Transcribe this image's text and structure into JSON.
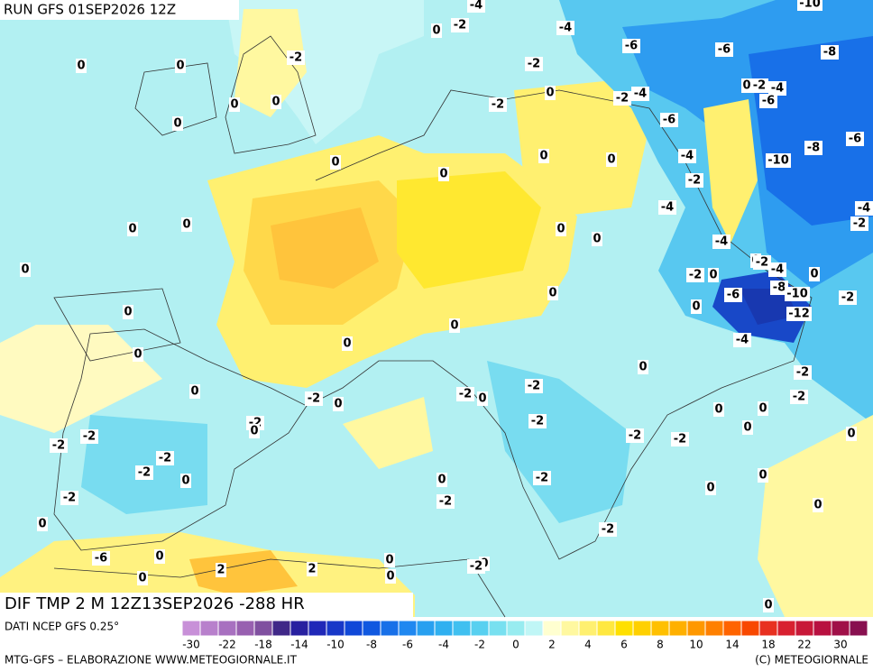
{
  "header": {
    "title": "RUN GFS 01SEP2026 12Z"
  },
  "footer": {
    "field": "DIF TMP 2 M 12Z13SEP2026 -288 HR",
    "source": "DATI NCEP GFS 0.25°",
    "credit_left": "MTG-GFS – ELABORAZIONE WWW.METEOGIORNALE.IT",
    "credit_right": "(C) METEOGIORNALE"
  },
  "colorbar": {
    "colors": [
      "#c890d8",
      "#b880cc",
      "#a870c0",
      "#9860b0",
      "#8050a0",
      "#402888",
      "#2820a0",
      "#2028b8",
      "#1838c8",
      "#1048d8",
      "#1058e0",
      "#1870e8",
      "#2088f0",
      "#28a0f0",
      "#30b0f0",
      "#40c0f0",
      "#58d0f0",
      "#78e0f0",
      "#98ecf0",
      "#c0f6f6",
      "#ffffd0",
      "#fff8a0",
      "#fff070",
      "#ffe840",
      "#ffe000",
      "#ffd000",
      "#ffc000",
      "#ffb000",
      "#ff9800",
      "#ff8000",
      "#ff6400",
      "#f84800",
      "#e83020",
      "#d82030",
      "#c81838",
      "#b81040",
      "#a01048",
      "#881050"
    ],
    "labels": [
      -30,
      -22,
      -18,
      -14,
      -10,
      -8,
      -6,
      -4,
      -2,
      0,
      2,
      4,
      6,
      8,
      10,
      14,
      18,
      22,
      30
    ]
  },
  "contour_labels": [
    0,
    0,
    -2,
    0,
    0,
    0,
    0,
    0,
    0,
    -2,
    -4,
    -2,
    -4,
    -6,
    -6,
    -8,
    -10,
    0,
    -2,
    -4,
    -2,
    -6,
    0,
    -2,
    -4,
    -6,
    -6,
    -8,
    -10,
    0,
    0,
    -4,
    -2,
    -4,
    -4,
    -2,
    0,
    0,
    0,
    0,
    0,
    -4,
    0,
    -2,
    -4,
    0,
    -2,
    0,
    0,
    -6,
    -8,
    -10,
    -2,
    0,
    -12,
    -4,
    0,
    0,
    0,
    0,
    0,
    -2,
    0,
    -2,
    0,
    -2,
    0,
    -2,
    -2,
    0,
    0,
    -2,
    0,
    -2,
    -2,
    -2,
    0,
    0,
    -2,
    -2,
    -2,
    -2,
    0,
    -2,
    0,
    0,
    -2,
    -2,
    0,
    0,
    0,
    -2,
    -6,
    0,
    0,
    2,
    2,
    0,
    0,
    0,
    -2,
    0
  ]
}
